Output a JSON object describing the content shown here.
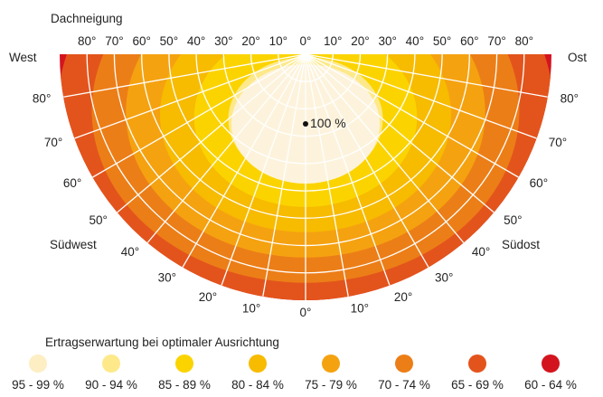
{
  "diagram": {
    "title": "Dachneigung",
    "center_label": "100 %",
    "directions": {
      "west": "West",
      "east": "Ost",
      "southwest": "Südwest",
      "southeast": "Südost"
    },
    "top_ticks": [
      "80°",
      "70°",
      "60°",
      "50°",
      "40°",
      "30°",
      "20°",
      "10°",
      "0°",
      "10°",
      "20°",
      "30°",
      "40°",
      "50°",
      "60°",
      "70°",
      "80°"
    ],
    "azimuth_labels": [
      "80°",
      "70°",
      "60°",
      "50°",
      "40°",
      "30°",
      "20°",
      "10°",
      "0°",
      "10°",
      "20°",
      "30°",
      "40°",
      "50°",
      "60°",
      "70°",
      "80°"
    ],
    "zones": [
      {
        "range": "95 - 99 %",
        "color": "#fdeec4"
      },
      {
        "range": "90 - 94 %",
        "color": "#fde98a"
      },
      {
        "range": "85 - 89 %",
        "color": "#fbd400"
      },
      {
        "range": "80 - 84 %",
        "color": "#f7bb00"
      },
      {
        "range": "75 - 79 %",
        "color": "#f5a210"
      },
      {
        "range": "70 - 74 %",
        "color": "#ec7e17"
      },
      {
        "range": "65 - 69 %",
        "color": "#e3541c"
      },
      {
        "range": "60 - 64 %",
        "color": "#d3141e"
      }
    ],
    "center_zone_color": "#fdf3dc"
  },
  "legend": {
    "title": "Ertragserwartung bei optimaler Ausrichtung"
  }
}
